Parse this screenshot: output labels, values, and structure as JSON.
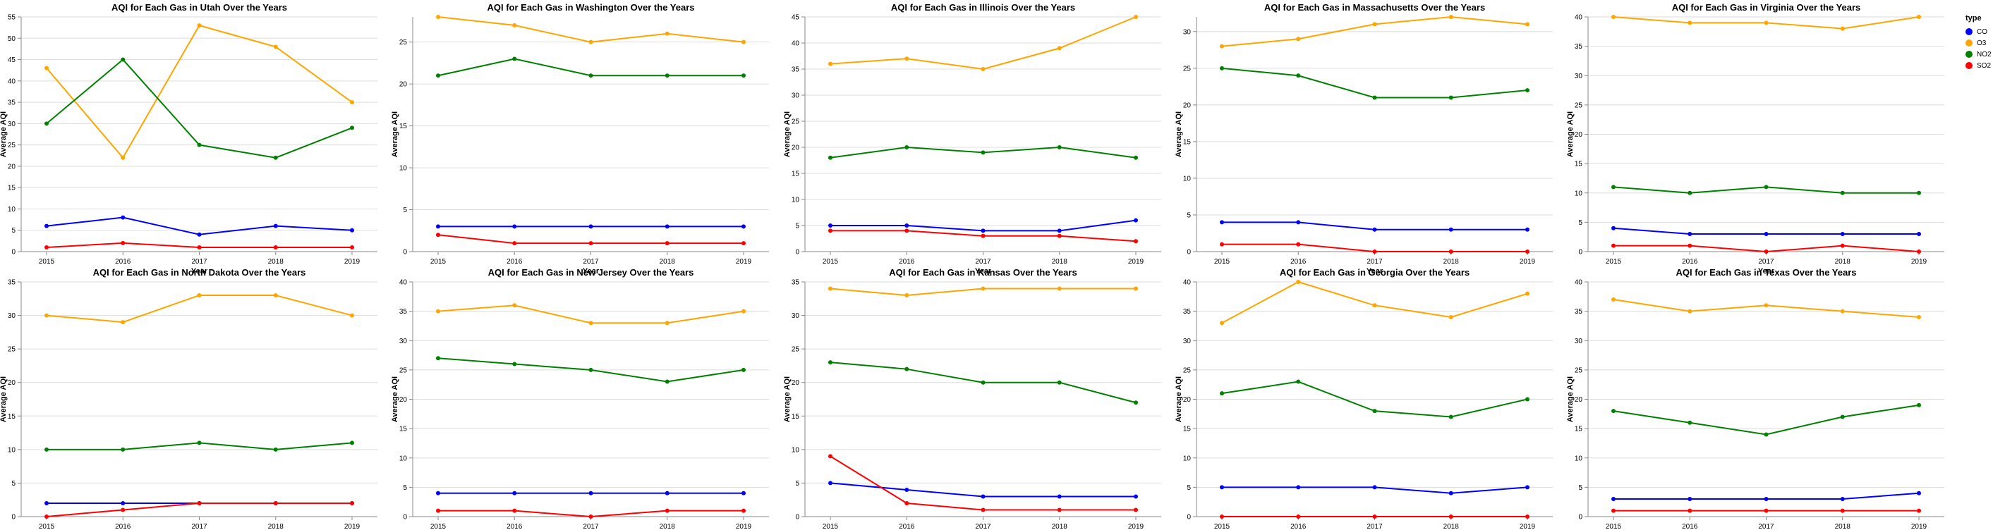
{
  "legend": {
    "title": "type",
    "items": [
      {
        "label": "CO",
        "color": "#0000ff"
      },
      {
        "label": "O3",
        "color": "#ffa500"
      },
      {
        "label": "NO2",
        "color": "#008000"
      },
      {
        "label": "SO2",
        "color": "#ff0000"
      }
    ]
  },
  "chart_data": [
    {
      "type": "line",
      "title": "AQI for Each Gas in Utah Over the Years",
      "xlabel": "Year",
      "ylabel": "Average AQI",
      "x": [
        2015,
        2016,
        2017,
        2018,
        2019
      ],
      "ylim": [
        0,
        55
      ],
      "yticks": [
        0,
        5,
        10,
        15,
        20,
        25,
        30,
        35,
        40,
        45,
        50,
        55
      ],
      "grid": true,
      "legend_position": "right",
      "series": [
        {
          "name": "CO",
          "values": [
            6,
            8,
            4,
            6,
            5
          ]
        },
        {
          "name": "O3",
          "values": [
            43,
            22,
            53,
            48,
            35
          ]
        },
        {
          "name": "NO2",
          "values": [
            30,
            45,
            25,
            22,
            29
          ]
        },
        {
          "name": "SO2",
          "values": [
            1,
            2,
            1,
            1,
            1
          ]
        }
      ]
    },
    {
      "type": "line",
      "title": "AQI for Each Gas in Washington Over the Years",
      "xlabel": "Year",
      "ylabel": "Average AQI",
      "x": [
        2015,
        2016,
        2017,
        2018,
        2019
      ],
      "ylim": [
        0,
        28
      ],
      "yticks": [
        0,
        5,
        10,
        15,
        20,
        25
      ],
      "grid": true,
      "series": [
        {
          "name": "CO",
          "values": [
            3,
            3,
            3,
            3,
            3
          ]
        },
        {
          "name": "O3",
          "values": [
            28,
            27,
            25,
            26,
            25
          ]
        },
        {
          "name": "NO2",
          "values": [
            21,
            23,
            21,
            21,
            21
          ]
        },
        {
          "name": "SO2",
          "values": [
            2,
            1,
            1,
            1,
            1
          ]
        }
      ]
    },
    {
      "type": "line",
      "title": "AQI for Each Gas in Illinois Over the Years",
      "xlabel": "Year",
      "ylabel": "Average AQI",
      "x": [
        2015,
        2016,
        2017,
        2018,
        2019
      ],
      "ylim": [
        0,
        45
      ],
      "yticks": [
        0,
        5,
        10,
        15,
        20,
        25,
        30,
        35,
        40,
        45
      ],
      "grid": true,
      "series": [
        {
          "name": "CO",
          "values": [
            5,
            5,
            4,
            4,
            6
          ]
        },
        {
          "name": "O3",
          "values": [
            36,
            37,
            35,
            39,
            45
          ]
        },
        {
          "name": "NO2",
          "values": [
            18,
            20,
            19,
            20,
            18
          ]
        },
        {
          "name": "SO2",
          "values": [
            4,
            4,
            3,
            3,
            2
          ]
        }
      ]
    },
    {
      "type": "line",
      "title": "AQI for Each Gas in Massachusetts Over the Years",
      "xlabel": "Year",
      "ylabel": "Average AQI",
      "x": [
        2015,
        2016,
        2017,
        2018,
        2019
      ],
      "ylim": [
        0,
        32
      ],
      "yticks": [
        0,
        5,
        10,
        15,
        20,
        25,
        30
      ],
      "grid": true,
      "series": [
        {
          "name": "CO",
          "values": [
            4,
            4,
            3,
            3,
            3
          ]
        },
        {
          "name": "O3",
          "values": [
            28,
            29,
            31,
            32,
            31
          ]
        },
        {
          "name": "NO2",
          "values": [
            25,
            24,
            21,
            21,
            22
          ]
        },
        {
          "name": "SO2",
          "values": [
            1,
            1,
            0,
            0,
            0
          ]
        }
      ]
    },
    {
      "type": "line",
      "title": "AQI for Each Gas in Virginia Over the Years",
      "xlabel": "Year",
      "ylabel": "Average AQI",
      "x": [
        2015,
        2016,
        2017,
        2018,
        2019
      ],
      "ylim": [
        0,
        40
      ],
      "yticks": [
        0,
        5,
        10,
        15,
        20,
        25,
        30,
        35,
        40
      ],
      "grid": true,
      "series": [
        {
          "name": "CO",
          "values": [
            4,
            3,
            3,
            3,
            3
          ]
        },
        {
          "name": "O3",
          "values": [
            40,
            39,
            39,
            38,
            40
          ]
        },
        {
          "name": "NO2",
          "values": [
            11,
            10,
            11,
            10,
            10
          ]
        },
        {
          "name": "SO2",
          "values": [
            1,
            1,
            0,
            1,
            0
          ]
        }
      ]
    },
    {
      "type": "line",
      "title": "AQI for Each Gas in North Dakota Over the Years",
      "xlabel": "Year",
      "ylabel": "Average AQI",
      "x": [
        2015,
        2016,
        2017,
        2018,
        2019
      ],
      "ylim": [
        0,
        35
      ],
      "yticks": [
        0,
        5,
        10,
        15,
        20,
        25,
        30,
        35
      ],
      "grid": true,
      "series": [
        {
          "name": "CO",
          "values": [
            2,
            2,
            2,
            2,
            2
          ]
        },
        {
          "name": "O3",
          "values": [
            30,
            29,
            33,
            33,
            30
          ]
        },
        {
          "name": "NO2",
          "values": [
            10,
            10,
            11,
            10,
            11
          ]
        },
        {
          "name": "SO2",
          "values": [
            0,
            1,
            2,
            2,
            2
          ]
        }
      ]
    },
    {
      "type": "line",
      "title": "AQI for Each Gas in New Jersey Over the Years",
      "xlabel": "Year",
      "ylabel": "Average AQI",
      "x": [
        2015,
        2016,
        2017,
        2018,
        2019
      ],
      "ylim": [
        0,
        40
      ],
      "yticks": [
        0,
        5,
        10,
        15,
        20,
        25,
        30,
        35,
        40
      ],
      "grid": true,
      "series": [
        {
          "name": "CO",
          "values": [
            4,
            4,
            4,
            4,
            4
          ]
        },
        {
          "name": "O3",
          "values": [
            35,
            36,
            33,
            33,
            35
          ]
        },
        {
          "name": "NO2",
          "values": [
            27,
            26,
            25,
            23,
            25
          ]
        },
        {
          "name": "SO2",
          "values": [
            1,
            1,
            0,
            1,
            1
          ]
        }
      ]
    },
    {
      "type": "line",
      "title": "AQI for Each Gas in Kansas Over the Years",
      "xlabel": "Year",
      "ylabel": "Average AQI",
      "x": [
        2015,
        2016,
        2017,
        2018,
        2019
      ],
      "ylim": [
        0,
        35
      ],
      "yticks": [
        0,
        5,
        10,
        15,
        20,
        25,
        30,
        35
      ],
      "grid": true,
      "series": [
        {
          "name": "CO",
          "values": [
            5,
            4,
            3,
            3,
            3
          ]
        },
        {
          "name": "O3",
          "values": [
            34,
            33,
            34,
            34,
            34
          ]
        },
        {
          "name": "NO2",
          "values": [
            23,
            22,
            20,
            20,
            17
          ]
        },
        {
          "name": "SO2",
          "values": [
            9,
            2,
            1,
            1,
            1
          ]
        }
      ]
    },
    {
      "type": "line",
      "title": "AQI for Each Gas in Georgia Over the Years",
      "xlabel": "Year",
      "ylabel": "Average AQI",
      "x": [
        2015,
        2016,
        2017,
        2018,
        2019
      ],
      "ylim": [
        0,
        40
      ],
      "yticks": [
        0,
        5,
        10,
        15,
        20,
        25,
        30,
        35,
        40
      ],
      "grid": true,
      "series": [
        {
          "name": "CO",
          "values": [
            5,
            5,
            5,
            4,
            5
          ]
        },
        {
          "name": "O3",
          "values": [
            33,
            40,
            36,
            34,
            38
          ]
        },
        {
          "name": "NO2",
          "values": [
            21,
            23,
            18,
            17,
            20
          ]
        },
        {
          "name": "SO2",
          "values": [
            0,
            0,
            0,
            0,
            0
          ]
        }
      ]
    },
    {
      "type": "line",
      "title": "AQI for Each Gas in Texas Over the Years",
      "xlabel": "Year",
      "ylabel": "Average AQI",
      "x": [
        2015,
        2016,
        2017,
        2018,
        2019
      ],
      "ylim": [
        0,
        40
      ],
      "yticks": [
        0,
        5,
        10,
        15,
        20,
        25,
        30,
        35,
        40
      ],
      "grid": true,
      "series": [
        {
          "name": "CO",
          "values": [
            3,
            3,
            3,
            3,
            4
          ]
        },
        {
          "name": "O3",
          "values": [
            37,
            35,
            36,
            35,
            34
          ]
        },
        {
          "name": "NO2",
          "values": [
            18,
            16,
            14,
            17,
            19
          ]
        },
        {
          "name": "SO2",
          "values": [
            1,
            1,
            1,
            1,
            1
          ]
        }
      ]
    }
  ]
}
